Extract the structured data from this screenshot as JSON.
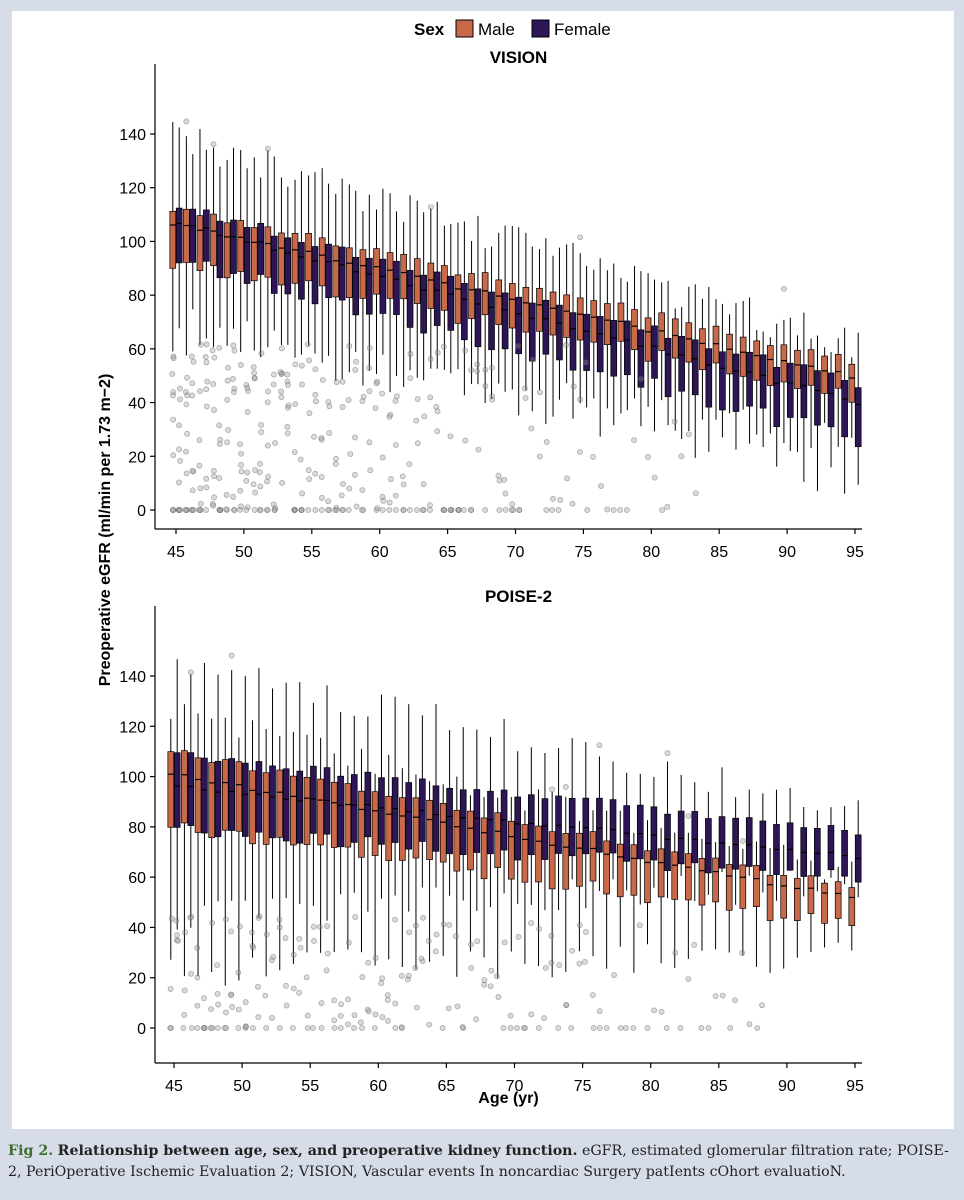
{
  "legend": {
    "title": "Sex",
    "entries": [
      {
        "label": "Male",
        "color": "#c8694a"
      },
      {
        "label": "Female",
        "color": "#2e1656"
      }
    ]
  },
  "caption": {
    "label": "Fig 2.",
    "title": "Relationship between age, sex, and preoperative kidney function.",
    "body": "eGFR, estimated glomerular filtration rate; POISE-2, PeriOperative Ischemic Evaluation 2; VISION, Vascular events In noncardiac Surgery patIents cOhort evaluatioN."
  },
  "chart_data": [
    {
      "type": "box",
      "title": "VISION",
      "xlabel": "",
      "ylabel": "Preoperative eGFR (ml/min per 1.73 m−2)",
      "xlim": [
        45,
        95
      ],
      "ylim": [
        0,
        150
      ],
      "xticks": [
        45,
        50,
        55,
        60,
        65,
        70,
        75,
        80,
        85,
        90,
        95
      ],
      "yticks": [
        0,
        20,
        40,
        60,
        80,
        100,
        120,
        140
      ],
      "series": [
        {
          "name": "Male",
          "color": "#c8694a",
          "x_start": 45,
          "median_start": 107,
          "median_end": 50,
          "q1_start": 93,
          "q1_end": 43,
          "q3_start": 113,
          "q3_end": 56,
          "max_start": 137,
          "max_end": 58,
          "min_start": 62,
          "min_end": 25
        },
        {
          "name": "Female",
          "color": "#2e1656",
          "x_start": 45,
          "median_start": 107,
          "median_end": 40,
          "q1_start": 93,
          "q1_end": 26,
          "q3_start": 113,
          "q3_end": 47,
          "max_start": 136,
          "max_end": 59,
          "min_start": 70,
          "min_end": 10
        }
      ],
      "outlier_ymax": 150
    },
    {
      "type": "box",
      "title": "POISE-2",
      "xlabel": "Age (yr)",
      "ylabel": "Preoperative eGFR (ml/min per 1.73 m−2)",
      "xlim": [
        45,
        95
      ],
      "ylim": [
        0,
        150
      ],
      "xticks": [
        45,
        50,
        55,
        60,
        65,
        70,
        75,
        80,
        85,
        90,
        95
      ],
      "yticks": [
        0,
        20,
        40,
        60,
        80,
        100,
        120,
        140
      ],
      "series": [
        {
          "name": "Male",
          "color": "#c8694a",
          "x_start": 45,
          "median_start": 101,
          "median_end": 52,
          "q1_start": 80,
          "q1_end": 41,
          "q3_start": 110,
          "q3_end": 56,
          "max_start": 123,
          "max_end": 58,
          "min_start": 23,
          "min_end": 28
        },
        {
          "name": "Female",
          "color": "#2e1656",
          "x_start": 45,
          "median_start": 96,
          "median_end": 68,
          "q1_start": 79,
          "q1_end": 60,
          "q3_start": 109,
          "q3_end": 78,
          "max_start": 143,
          "max_end": 84,
          "min_start": 45,
          "min_end": 58
        }
      ],
      "outlier_ymax": 150
    }
  ]
}
